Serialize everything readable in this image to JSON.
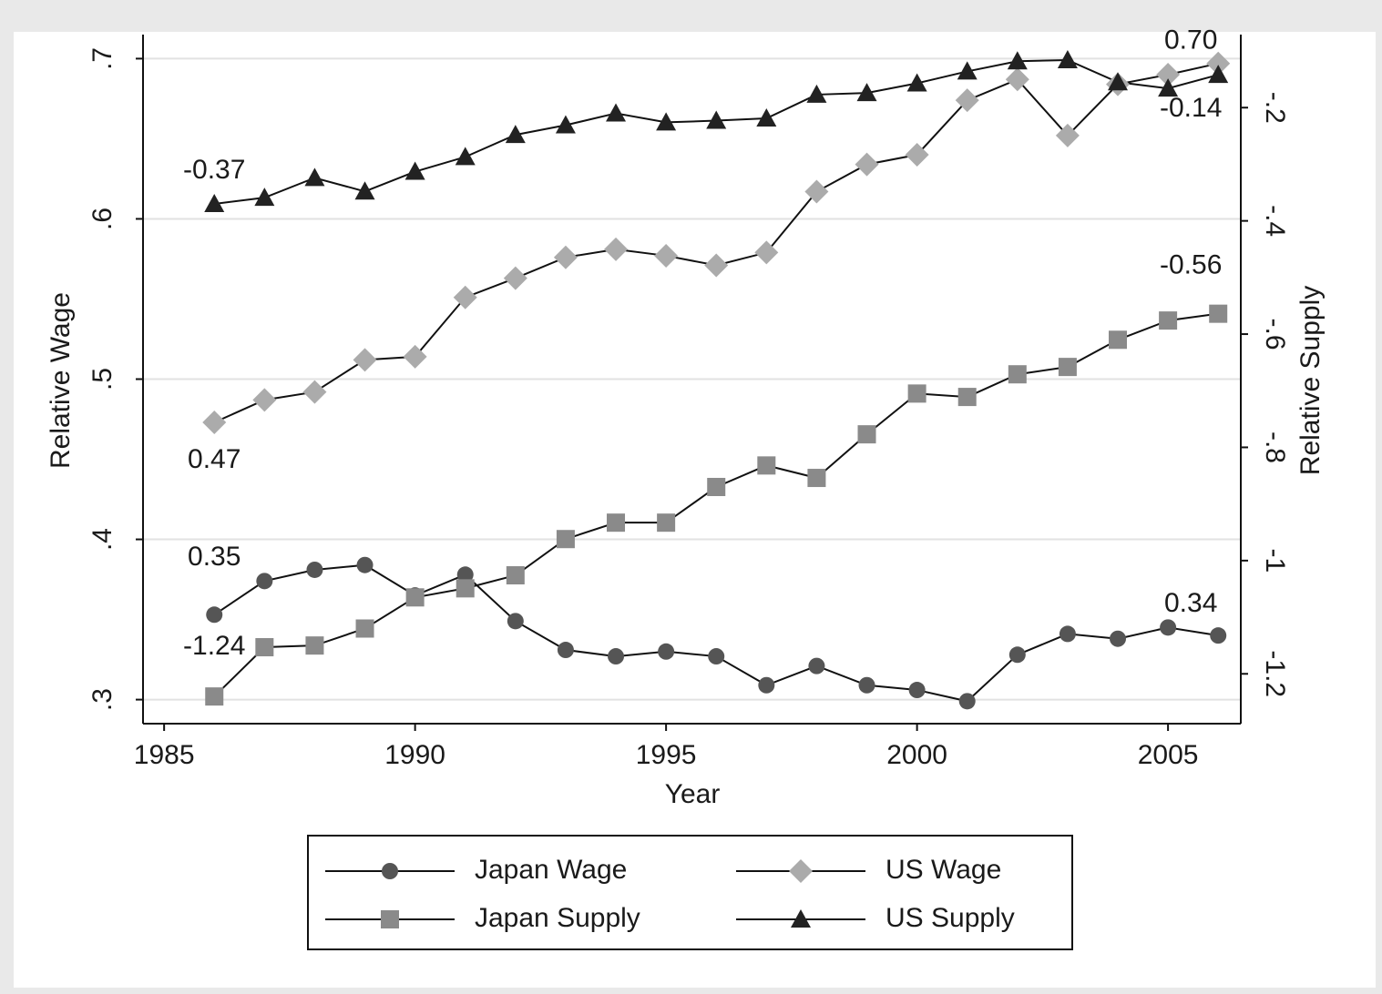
{
  "chart_data": {
    "type": "line",
    "x_label": "Year",
    "y_label": "Relative Wage",
    "y2_label": "Relative Supply",
    "x": [
      1986,
      1987,
      1988,
      1989,
      1990,
      1991,
      1992,
      1993,
      1994,
      1995,
      1996,
      1997,
      1998,
      1999,
      2000,
      2001,
      2002,
      2003,
      2004,
      2005,
      2006
    ],
    "xlim": [
      1984.58,
      2006.45
    ],
    "xticks": [
      1985,
      1990,
      1995,
      2000,
      2005
    ],
    "ylim": [
      0.285,
      0.715
    ],
    "yticks": [
      {
        "value": 0.3,
        "label": ".3"
      },
      {
        "value": 0.4,
        "label": ".4"
      },
      {
        "value": 0.5,
        "label": ".5"
      },
      {
        "value": 0.6,
        "label": ".6"
      },
      {
        "value": 0.7,
        "label": ".7"
      }
    ],
    "y2lim": [
      -1.288,
      -0.071
    ],
    "y2ticks": [
      {
        "value": -1.2,
        "label": "-1.2"
      },
      -1,
      {
        "value": -0.8,
        "label": "-.8"
      },
      {
        "value": -0.6,
        "label": "-.6"
      },
      {
        "value": -0.4,
        "label": "-.4"
      },
      {
        "value": -0.2,
        "label": "-.2"
      }
    ],
    "grid": true,
    "legend": "bottom",
    "series": [
      {
        "name": "Japan Wage",
        "color": "#555555",
        "marker": "circle",
        "axis": "y",
        "values": [
          0.353,
          0.374,
          0.381,
          0.384,
          0.365,
          0.378,
          0.349,
          0.331,
          0.327,
          0.33,
          0.327,
          0.309,
          0.321,
          0.309,
          0.306,
          0.299,
          0.328,
          0.341,
          0.338,
          0.345,
          0.34
        ],
        "value_labels": [
          "0.35",
          null,
          null,
          null,
          null,
          null,
          null,
          null,
          null,
          null,
          null,
          null,
          null,
          null,
          null,
          null,
          null,
          null,
          null,
          null,
          "0.34"
        ]
      },
      {
        "name": "US Wage",
        "color": "#ababab",
        "marker": "diamond",
        "axis": "y",
        "values": [
          0.473,
          0.487,
          0.492,
          0.512,
          0.514,
          0.551,
          0.563,
          0.576,
          0.581,
          0.577,
          0.571,
          0.579,
          0.617,
          0.634,
          0.64,
          0.674,
          0.687,
          0.652,
          0.684,
          0.69,
          0.697
        ],
        "value_labels": [
          "0.47",
          null,
          null,
          null,
          null,
          null,
          null,
          null,
          null,
          null,
          null,
          null,
          null,
          null,
          null,
          null,
          null,
          null,
          null,
          null,
          "0.70"
        ]
      },
      {
        "name": "Japan Supply",
        "color": "#8a8a8a",
        "marker": "square",
        "axis": "y2",
        "values": [
          -1.24,
          -1.153,
          -1.15,
          -1.12,
          -1.065,
          -1.049,
          -1.026,
          -0.962,
          -0.933,
          -0.933,
          -0.87,
          -0.832,
          -0.854,
          -0.777,
          -0.705,
          -0.711,
          -0.671,
          -0.658,
          -0.61,
          -0.576,
          -0.564
        ],
        "value_labels": [
          "-1.24",
          null,
          null,
          null,
          null,
          null,
          null,
          null,
          null,
          null,
          null,
          null,
          null,
          null,
          null,
          null,
          null,
          null,
          null,
          null,
          "-0.56"
        ]
      },
      {
        "name": "US Supply",
        "color": "#222222",
        "marker": "triangle",
        "axis": "y2",
        "values": [
          -0.37,
          -0.359,
          -0.324,
          -0.348,
          -0.313,
          -0.287,
          -0.248,
          -0.231,
          -0.21,
          -0.226,
          -0.223,
          -0.219,
          -0.177,
          -0.174,
          -0.157,
          -0.136,
          -0.118,
          -0.116,
          -0.155,
          -0.166,
          -0.142
        ],
        "value_labels": [
          "-0.37",
          null,
          null,
          null,
          null,
          null,
          null,
          null,
          null,
          null,
          null,
          null,
          null,
          null,
          null,
          null,
          null,
          null,
          null,
          null,
          "-0.14"
        ]
      }
    ]
  }
}
